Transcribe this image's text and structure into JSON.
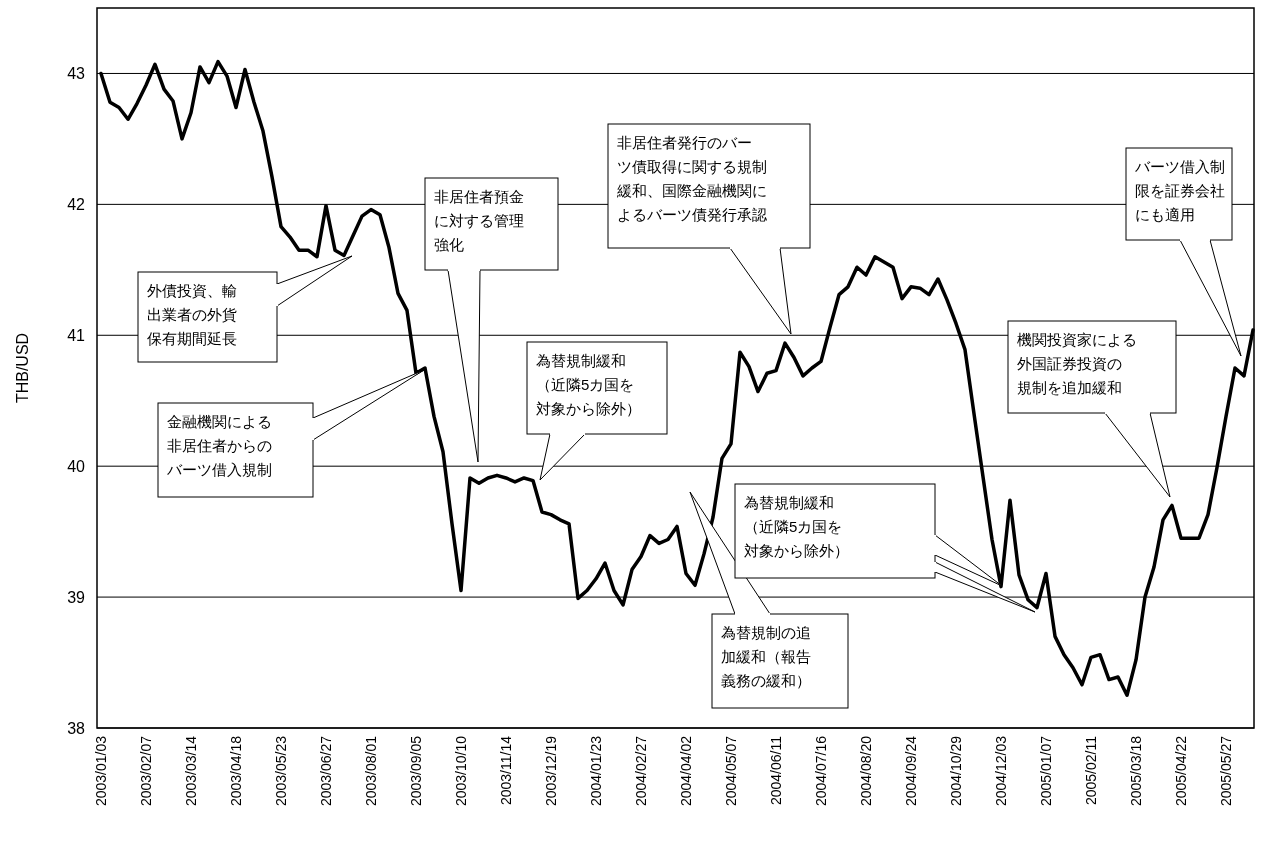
{
  "chart_data": {
    "type": "line",
    "ylabel": "THB/USD",
    "ylim": [
      38,
      43.5
    ],
    "yticks": [
      38,
      39,
      40,
      41,
      42,
      43
    ],
    "grid": "y",
    "marker": "none",
    "line_style": "solid",
    "categories": [
      "2003/01/03",
      null,
      null,
      null,
      null,
      "2003/02/07",
      null,
      null,
      null,
      null,
      "2003/03/14",
      null,
      null,
      null,
      null,
      "2003/04/18",
      null,
      null,
      null,
      null,
      "2003/05/23",
      null,
      null,
      null,
      null,
      "2003/06/27",
      null,
      null,
      null,
      null,
      "2003/08/01",
      null,
      null,
      null,
      null,
      "2003/09/05",
      null,
      null,
      null,
      null,
      "2003/10/10",
      null,
      null,
      null,
      null,
      "2003/11/14",
      null,
      null,
      null,
      null,
      "2003/12/19",
      null,
      null,
      null,
      null,
      "2004/01/23",
      null,
      null,
      null,
      null,
      "2004/02/27",
      null,
      null,
      null,
      null,
      "2004/04/02",
      null,
      null,
      null,
      null,
      "2004/05/07",
      null,
      null,
      null,
      null,
      "2004/06/11",
      null,
      null,
      null,
      null,
      "2004/07/16",
      null,
      null,
      null,
      null,
      "2004/08/20",
      null,
      null,
      null,
      null,
      "2004/09/24",
      null,
      null,
      null,
      null,
      "2004/10/29",
      null,
      null,
      null,
      null,
      "2004/12/03",
      null,
      null,
      null,
      null,
      "2005/01/07",
      null,
      null,
      null,
      null,
      "2005/02/11",
      null,
      null,
      null,
      null,
      "2005/03/18",
      null,
      null,
      null,
      null,
      "2005/04/22",
      null,
      null,
      null,
      null,
      "2005/05/27",
      null,
      null,
      null
    ],
    "series": [
      {
        "color": "#000000",
        "values": [
          43.0,
          42.78,
          42.74,
          42.65,
          42.77,
          42.91,
          43.07,
          42.88,
          42.79,
          42.5,
          42.7,
          43.05,
          42.93,
          43.09,
          42.98,
          42.74,
          43.03,
          42.78,
          42.56,
          42.21,
          41.83,
          41.75,
          41.65,
          41.65,
          41.6,
          41.99,
          41.65,
          41.61,
          41.76,
          41.91,
          41.96,
          41.92,
          41.67,
          41.32,
          41.19,
          40.71,
          40.75,
          40.38,
          40.11,
          39.56,
          39.05,
          39.91,
          39.87,
          39.91,
          39.93,
          39.91,
          39.88,
          39.91,
          39.89,
          39.65,
          39.63,
          39.59,
          39.56,
          38.99,
          39.05,
          39.14,
          39.26,
          39.05,
          38.94,
          39.21,
          39.31,
          39.47,
          39.41,
          39.44,
          39.54,
          39.18,
          39.09,
          39.33,
          39.61,
          40.06,
          40.17,
          40.87,
          40.76,
          40.57,
          40.71,
          40.73,
          40.94,
          40.83,
          40.69,
          40.75,
          40.8,
          41.06,
          41.31,
          41.37,
          41.52,
          41.46,
          41.6,
          41.56,
          41.52,
          41.28,
          41.37,
          41.36,
          41.31,
          41.43,
          41.27,
          41.09,
          40.89,
          40.4,
          39.92,
          39.44,
          39.08,
          39.74,
          39.17,
          38.98,
          38.92,
          39.18,
          38.7,
          38.56,
          38.46,
          38.33,
          38.54,
          38.56,
          38.37,
          38.39,
          38.25,
          38.52,
          39.0,
          39.23,
          39.59,
          39.7,
          39.45,
          39.45,
          39.45,
          39.63,
          39.99,
          40.38,
          40.75,
          40.69,
          41.04
        ]
      }
    ],
    "annotations": [
      "外債投資、輸出業者の外貨保有期間延長",
      "金融機関による非居住者からのバーツ借入規制",
      "非居住者預金に対する管理強化",
      "為替規制緩和（近隣5カ国を対象から除外）",
      "非居住者発行のバーツ債取得に関する規制緩和、国際金融機関によるバーツ債発行承認",
      "為替規制の追加緩和（報告義務の緩和）",
      "為替規制緩和（近隣5カ国を対象から除外）",
      "機関投資家による外国証券投資の規制を追加緩和",
      "バーツ借入制限を証券会社にも適用"
    ]
  }
}
